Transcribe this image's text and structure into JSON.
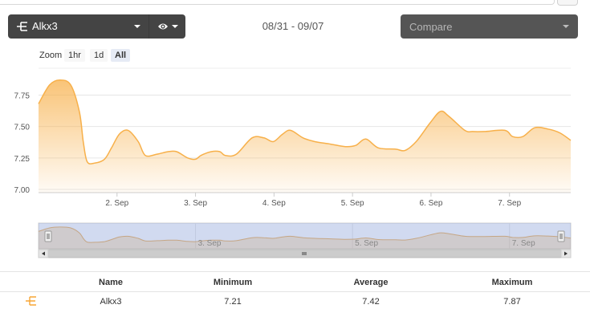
{
  "toolbar": {
    "series_label": "Alkx3",
    "series_icon": "trident-icon",
    "visibility_icon": "eye-icon",
    "date_range": "08/31 - 09/07",
    "compare_placeholder": "Compare"
  },
  "zoom": {
    "label": "Zoom",
    "options": [
      "1hr",
      "1d",
      "All"
    ],
    "active": "All"
  },
  "colors": {
    "series": "#f7b04a",
    "toolbar_bg": "#444444",
    "navigator_mask": "#cdd6ea"
  },
  "chart_data": {
    "type": "area",
    "y_ticks": [
      "7.75",
      "7.50",
      "7.25",
      "7.00"
    ],
    "x_ticks": [
      "2. Sep",
      "3. Sep",
      "4. Sep",
      "5. Sep",
      "6. Sep",
      "7. Sep"
    ],
    "x_tick_days": [
      2,
      3,
      4,
      5,
      6,
      7
    ],
    "ylim": [
      7.0,
      7.97
    ],
    "xlim": [
      1.0,
      7.78
    ],
    "series": [
      {
        "x": [
          1.0,
          1.14,
          1.27,
          1.41,
          1.52,
          1.57,
          1.62,
          1.72,
          1.84,
          1.93,
          2.03,
          2.14,
          2.27,
          2.36,
          2.51,
          2.65,
          2.76,
          2.9,
          3.0,
          3.07,
          3.2,
          3.31,
          3.38,
          3.52,
          3.72,
          3.87,
          3.99,
          4.11,
          4.21,
          4.37,
          4.52,
          4.72,
          4.91,
          5.04,
          5.17,
          5.33,
          5.55,
          5.67,
          5.81,
          5.99,
          6.12,
          6.23,
          6.43,
          6.53,
          6.68,
          6.94,
          7.04,
          7.17,
          7.32,
          7.49,
          7.64,
          7.78
        ],
        "y": [
          7.68,
          7.83,
          7.87,
          7.83,
          7.62,
          7.38,
          7.22,
          7.21,
          7.24,
          7.33,
          7.44,
          7.47,
          7.38,
          7.27,
          7.28,
          7.3,
          7.3,
          7.25,
          7.24,
          7.27,
          7.3,
          7.3,
          7.27,
          7.28,
          7.41,
          7.41,
          7.38,
          7.44,
          7.47,
          7.41,
          7.38,
          7.36,
          7.34,
          7.35,
          7.4,
          7.33,
          7.32,
          7.31,
          7.38,
          7.53,
          7.62,
          7.58,
          7.47,
          7.46,
          7.46,
          7.47,
          7.42,
          7.42,
          7.49,
          7.48,
          7.45,
          7.39
        ]
      }
    ],
    "navigator_ticks": [
      "3. Sep",
      "5. Sep",
      "7. Sep"
    ],
    "navigator_tick_days": [
      3,
      5,
      7
    ],
    "navigator_selection": [
      1.0,
      7.78
    ]
  },
  "table": {
    "headers": [
      "Name",
      "Minimum",
      "Average",
      "Maximum"
    ],
    "rows": [
      {
        "icon": "trident-icon",
        "name": "Alkx3",
        "minimum": "7.21",
        "average": "7.42",
        "maximum": "7.87"
      }
    ]
  }
}
